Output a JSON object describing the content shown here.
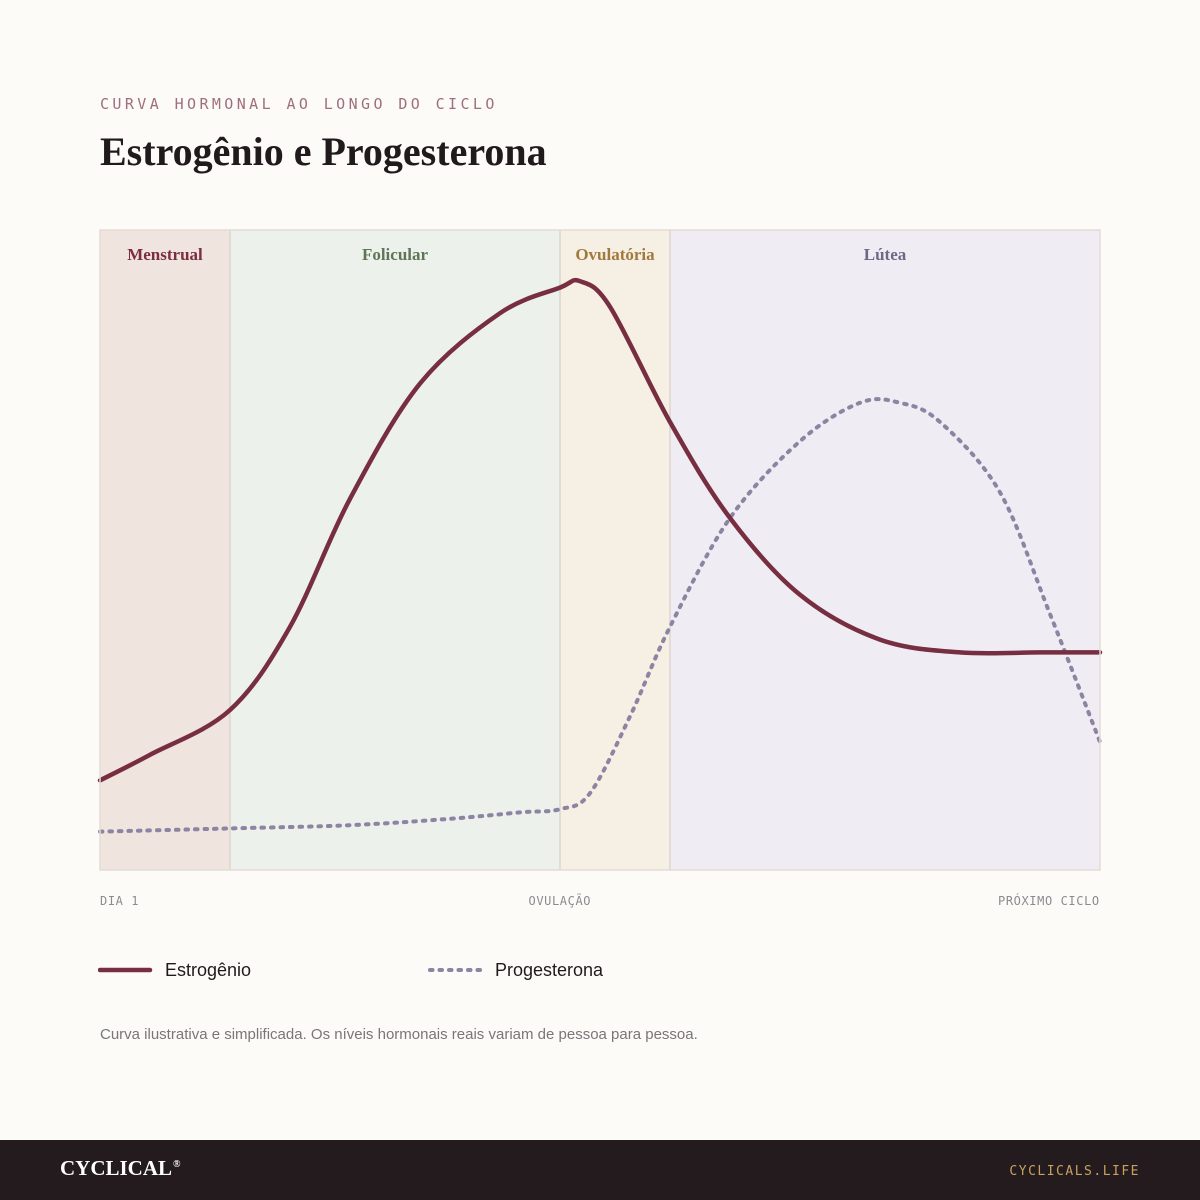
{
  "header": {
    "eyebrow": "CURVA HORMONAL AO LONGO DO CICLO",
    "title": "Estrogênio e Progesterona"
  },
  "chart_data": {
    "type": "line",
    "x_range": [
      0,
      100
    ],
    "y_range": [
      0,
      100
    ],
    "grid": false,
    "legend_position": "bottom-left",
    "x_tick_labels": [
      {
        "label": "DIA 1",
        "x": 0
      },
      {
        "label": "OVULAÇÃO",
        "x": 46
      },
      {
        "label": "PRÓXIMO CICLO",
        "x": 100
      }
    ],
    "phases": [
      {
        "name": "Menstrual",
        "start": 0,
        "end": 13,
        "fill": "#f0e4df",
        "text_color": "#7a2e40"
      },
      {
        "name": "Folicular",
        "start": 13,
        "end": 46,
        "fill": "#edf1eb",
        "text_color": "#5f7558"
      },
      {
        "name": "Ovulatória",
        "start": 46,
        "end": 57,
        "fill": "#f6efe4",
        "text_color": "#a07a3c"
      },
      {
        "name": "Lútea",
        "start": 57,
        "end": 100,
        "fill": "#efedf3",
        "text_color": "#6e6785"
      }
    ],
    "series": [
      {
        "name": "Estrogênio",
        "color": "#762e40",
        "style": "solid",
        "points": [
          [
            0,
            14
          ],
          [
            5,
            18
          ],
          [
            13,
            25
          ],
          [
            19,
            38
          ],
          [
            25,
            58
          ],
          [
            32,
            76
          ],
          [
            40,
            87
          ],
          [
            46,
            91
          ],
          [
            48,
            92
          ],
          [
            51,
            88
          ],
          [
            57,
            70
          ],
          [
            63,
            55
          ],
          [
            70,
            43
          ],
          [
            78,
            36
          ],
          [
            86,
            34
          ],
          [
            94,
            34
          ],
          [
            100,
            34
          ]
        ]
      },
      {
        "name": "Progesterona",
        "color": "#8c84a3",
        "style": "dotted",
        "points": [
          [
            0,
            6
          ],
          [
            13,
            6.5
          ],
          [
            25,
            7
          ],
          [
            35,
            8
          ],
          [
            42,
            9
          ],
          [
            46,
            9.5
          ],
          [
            49,
            12
          ],
          [
            53,
            24
          ],
          [
            57,
            38
          ],
          [
            63,
            55
          ],
          [
            70,
            67
          ],
          [
            76,
            73
          ],
          [
            80,
            73
          ],
          [
            84,
            70
          ],
          [
            90,
            59
          ],
          [
            95,
            40
          ],
          [
            100,
            20
          ]
        ]
      }
    ]
  },
  "legend": [
    {
      "label": "Estrogênio",
      "style": "solid",
      "color": "#762e40"
    },
    {
      "label": "Progesterona",
      "style": "dotted",
      "color": "#8c84a3"
    }
  ],
  "note": "Curva ilustrativa e simplificada. Os níveis hormonais reais variam de pessoa para pessoa.",
  "footer": {
    "brand": "CYCLICAL",
    "brand_mark": "®",
    "site": "CYCLICALS.LIFE"
  }
}
